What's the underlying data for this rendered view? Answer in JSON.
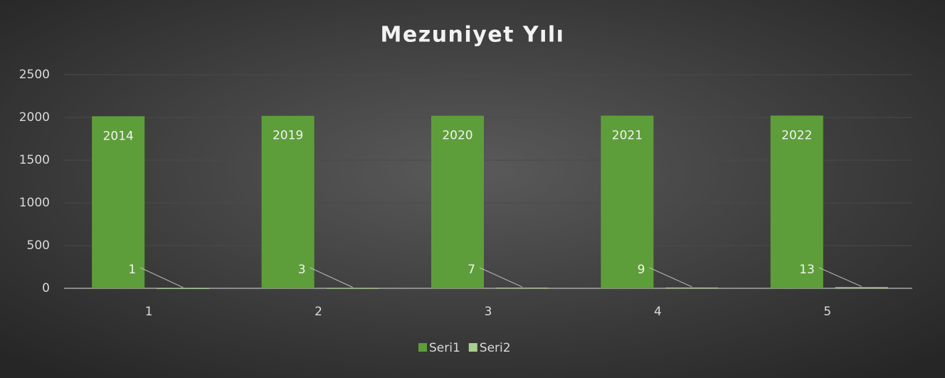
{
  "chart_data": {
    "type": "bar",
    "title": "Mezuniyet Yılı",
    "categories": [
      "1",
      "2",
      "3",
      "4",
      "5"
    ],
    "series": [
      {
        "name": "Seri1",
        "color": "#5e9e3a",
        "values": [
          2014,
          2019,
          2020,
          2021,
          2022
        ]
      },
      {
        "name": "Seri2",
        "color": "#a9d18e",
        "values": [
          1,
          3,
          7,
          9,
          13
        ]
      }
    ],
    "ylim": [
      0,
      2500
    ],
    "yticks": [
      0,
      500,
      1000,
      1500,
      2000,
      2500
    ],
    "grid": true,
    "legend": "bottom"
  }
}
